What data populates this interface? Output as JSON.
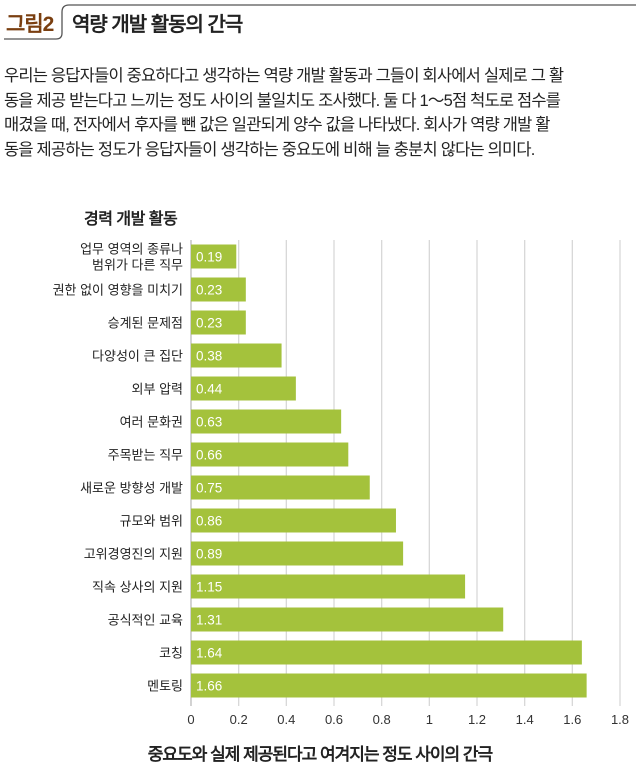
{
  "figure": {
    "number": "그림2",
    "title": "역량 개발 활동의 간극"
  },
  "description": [
    "우리는 응답자들이 중요하다고 생각하는 역량 개발 활동과 그들이 회사에서 실제로 그 활",
    "동을 제공 받는다고 느끼는 정도 사이의 불일치도 조사했다. 둘 다 1～5점 척도로 점수를",
    "매겼을 때, 전자에서 후자를 뺀 값은 일관되게 양수 값을 나타냈다. 회사가 역량 개발 활",
    "동을 제공하는 정도가 응답자들이 생각하는 중요도에 비해 늘 충분치 않다는 의미다."
  ],
  "chart_data": {
    "type": "bar",
    "orientation": "horizontal",
    "title": "경력 개발 활동",
    "xlabel": "중요도와 실제 제공된다고 여겨지는 정도 사이의 간극",
    "ylabel": "",
    "xlim": [
      0,
      1.8
    ],
    "xticks": [
      "0",
      "0.2",
      "0.4",
      "0.6",
      "0.8",
      "1",
      "1.2",
      "1.4",
      "1.6",
      "1.8"
    ],
    "grid": true,
    "bar_color": "#a4c23c",
    "categories": [
      [
        "업무 영역의 종류나",
        "범위가 다른 직무"
      ],
      [
        "권한 없이 영향을 미치기"
      ],
      [
        "승계된 문제점"
      ],
      [
        "다양성이 큰 집단"
      ],
      [
        "외부 압력"
      ],
      [
        "여러 문화권"
      ],
      [
        "주목받는 직무"
      ],
      [
        "새로운 방향성 개발"
      ],
      [
        "규모와 범위"
      ],
      [
        "고위경영진의 지원"
      ],
      [
        "직속 상사의 지원"
      ],
      [
        "공식적인 교육"
      ],
      [
        "코칭"
      ],
      [
        "멘토링"
      ]
    ],
    "values": [
      0.19,
      0.23,
      0.23,
      0.38,
      0.44,
      0.63,
      0.66,
      0.75,
      0.86,
      0.89,
      1.15,
      1.31,
      1.64,
      1.66
    ],
    "value_labels": [
      "0.19",
      "0.23",
      "0.23",
      "0.38",
      "0.44",
      "0.63",
      "0.66",
      "0.75",
      "0.86",
      "0.89",
      "1.15",
      "1.31",
      "1.64",
      "1.66"
    ]
  }
}
